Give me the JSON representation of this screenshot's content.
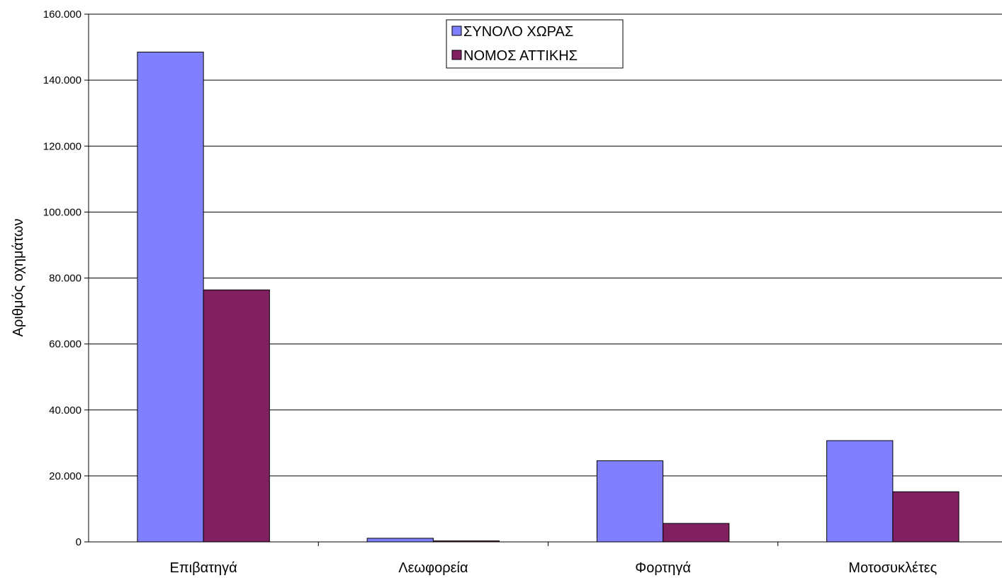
{
  "chart_data": {
    "type": "bar",
    "categories": [
      "Επιβατηγά",
      "Λεωφορεία",
      "Φορτηγά",
      "Μοτοσυκλέτες"
    ],
    "series": [
      {
        "name": "ΣΥΝΟΛΟ ΧΩΡΑΣ",
        "color": "#8080ff",
        "values": [
          148500,
          1100,
          24600,
          30700
        ]
      },
      {
        "name": "ΝΟΜΟΣ ΑΤΤΙΚΗΣ",
        "color": "#802060",
        "values": [
          76400,
          300,
          5600,
          15200
        ]
      }
    ],
    "ylabel": "Αριθμός οχημάτων",
    "xlabel": "",
    "ylim": [
      0,
      160000
    ],
    "yticks": [
      0,
      20000,
      40000,
      60000,
      80000,
      100000,
      120000,
      140000,
      160000
    ],
    "ytick_labels": [
      "0",
      "20.000",
      "40.000",
      "60.000",
      "80.000",
      "100.000",
      "120.000",
      "140.000",
      "160.000"
    ],
    "grid": true,
    "legend_position": "top-center"
  }
}
